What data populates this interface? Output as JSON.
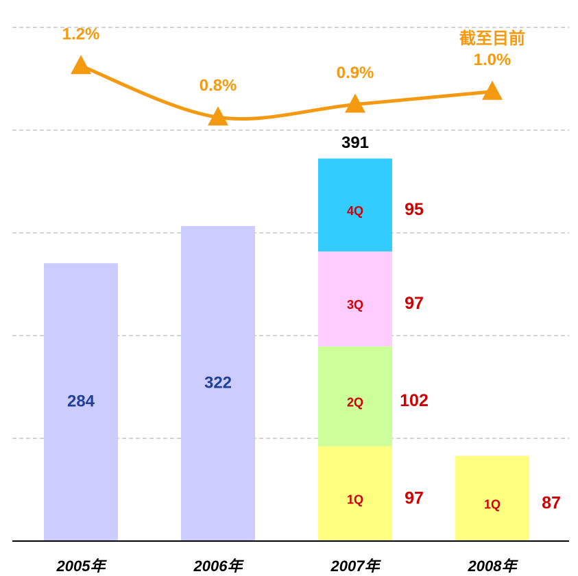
{
  "chart_data": {
    "type": "bar",
    "categories": [
      "2005年",
      "2006年",
      "2007年",
      "2008年"
    ],
    "annual": {
      "values": [
        284,
        322,
        null,
        null
      ],
      "color": "#ccccff"
    },
    "series": [
      {
        "name": "1Q",
        "color": "#ffff80",
        "values": [
          null,
          null,
          97,
          87
        ]
      },
      {
        "name": "2Q",
        "color": "#ccff99",
        "values": [
          null,
          null,
          102,
          null
        ]
      },
      {
        "name": "3Q",
        "color": "#ffccff",
        "values": [
          null,
          null,
          97,
          null
        ]
      },
      {
        "name": "4Q",
        "color": "#33ccff",
        "values": [
          null,
          null,
          95,
          null
        ]
      }
    ],
    "totals": [
      null,
      null,
      391,
      null
    ],
    "ylim": [
      0,
      525
    ],
    "yticks": [
      105,
      210,
      315,
      420,
      525
    ],
    "grid": true,
    "line": {
      "type": "line",
      "axis": "y2",
      "color": "#f59a10",
      "values": [
        1.2,
        0.8,
        0.9,
        1.0
      ],
      "value_labels": [
        "1.2%",
        "0.8%",
        "0.9%",
        "1.0%"
      ]
    },
    "y2lim": [
      -2.5,
      1.5
    ],
    "annotation": "截至目前"
  }
}
